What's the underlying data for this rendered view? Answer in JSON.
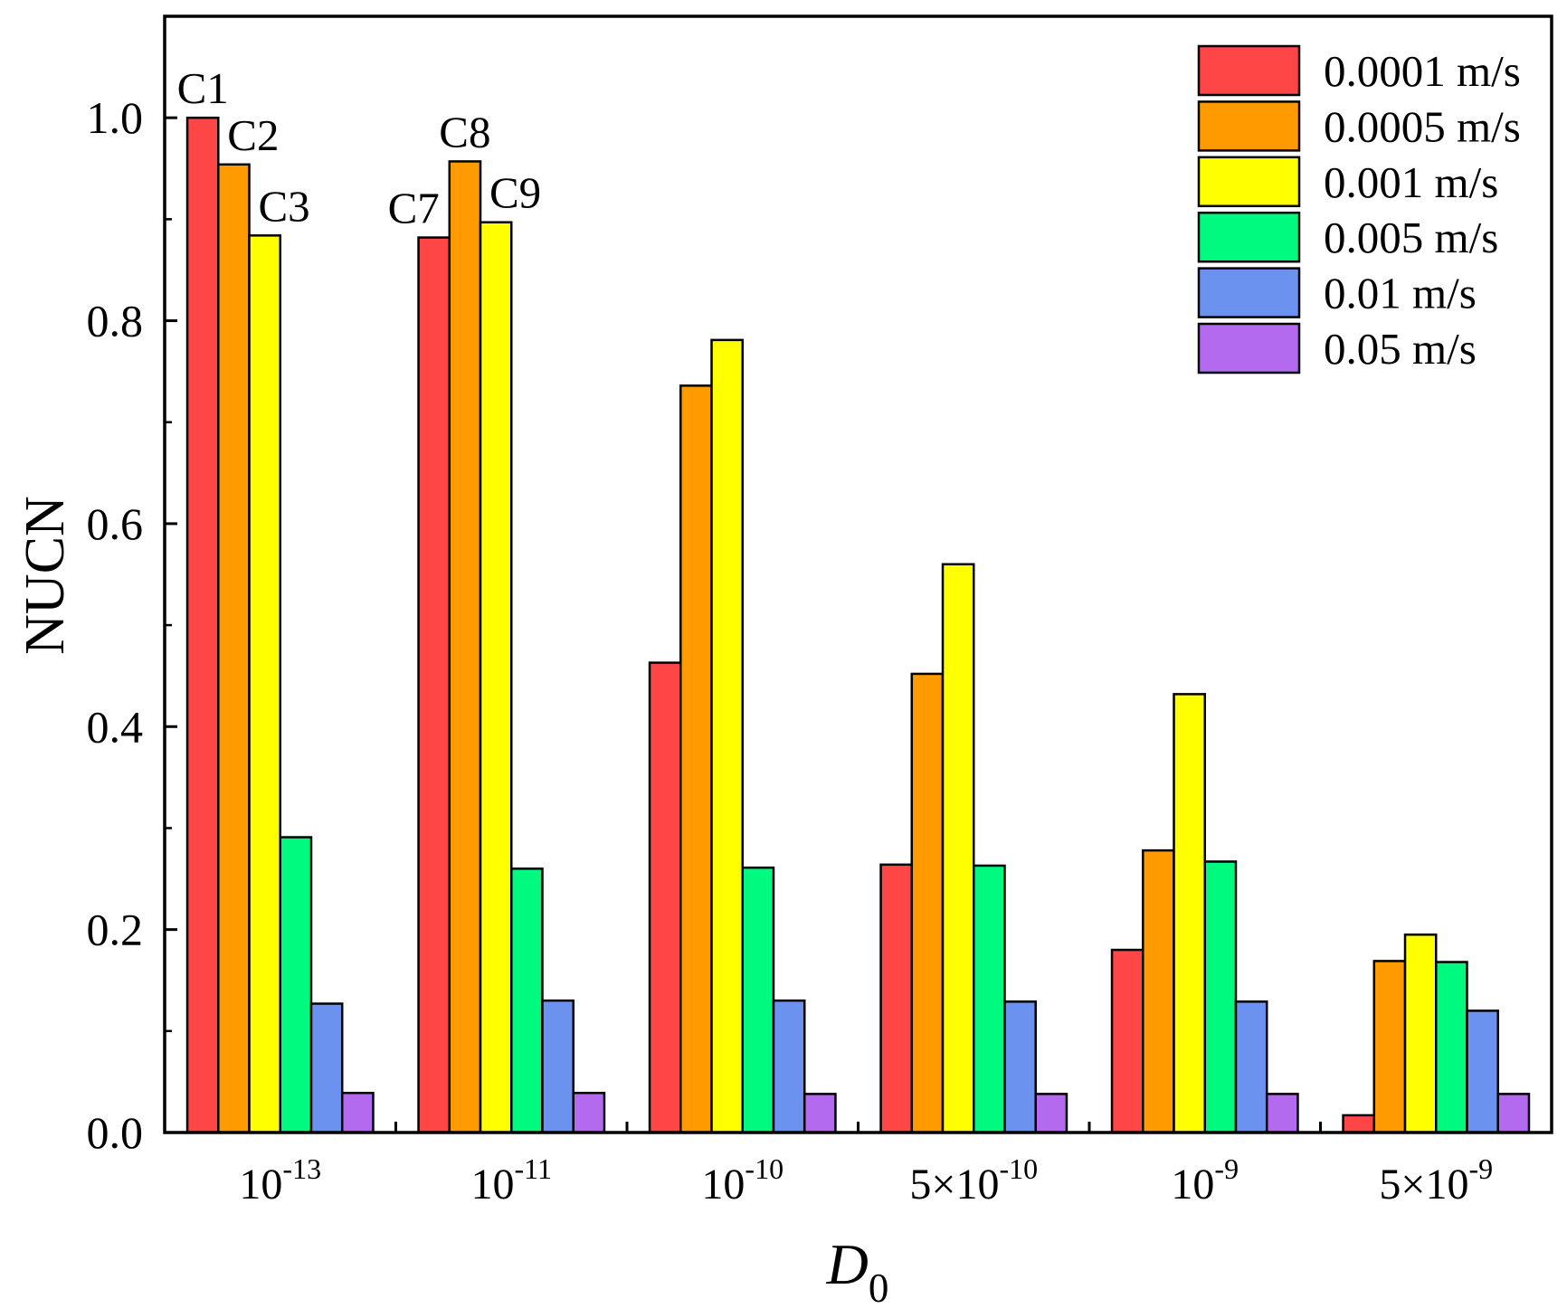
{
  "chart_data": {
    "type": "bar",
    "title": "",
    "xlabel": {
      "main": "D",
      "sub": "0"
    },
    "ylabel": "NUCN",
    "ylim": [
      0,
      1.1
    ],
    "yticks": [
      "0.0",
      "0.2",
      "0.4",
      "0.6",
      "0.8",
      "1.0"
    ],
    "grid": false,
    "legend_position": "top-right",
    "categories": [
      {
        "base": "10",
        "exp": "-13"
      },
      {
        "base": "10",
        "exp": "-11"
      },
      {
        "base": "10",
        "exp": "-10"
      },
      {
        "base": "5×10",
        "exp": "-10"
      },
      {
        "base": "10",
        "exp": "-9"
      },
      {
        "base": "5×10",
        "exp": "-9"
      }
    ],
    "series": [
      {
        "name": "0.0001 m/s",
        "color": "#FF4646",
        "values": [
          1.0,
          0.882,
          0.463,
          0.264,
          0.18,
          0.017
        ]
      },
      {
        "name": "0.0005 m/s",
        "color": "#FF9A00",
        "values": [
          0.954,
          0.957,
          0.736,
          0.452,
          0.278,
          0.169
        ]
      },
      {
        "name": "0.001 m/s",
        "color": "#FFFF00",
        "values": [
          0.884,
          0.897,
          0.781,
          0.56,
          0.432,
          0.195
        ]
      },
      {
        "name": "0.005 m/s",
        "color": "#00FA80",
        "values": [
          0.291,
          0.26,
          0.261,
          0.263,
          0.267,
          0.168
        ]
      },
      {
        "name": "0.01 m/s",
        "color": "#6A92EE",
        "values": [
          0.127,
          0.13,
          0.13,
          0.129,
          0.129,
          0.12
        ]
      },
      {
        "name": "0.05 m/s",
        "color": "#B46AEE",
        "values": [
          0.039,
          0.039,
          0.038,
          0.038,
          0.038,
          0.038
        ]
      }
    ],
    "annotations": [
      {
        "text": "C1",
        "series": 0,
        "category": 0,
        "placement": "above"
      },
      {
        "text": "C2",
        "series": 1,
        "category": 0,
        "placement": "above-right"
      },
      {
        "text": "C3",
        "series": 2,
        "category": 0,
        "placement": "above-right"
      },
      {
        "text": "C7",
        "series": 0,
        "category": 1,
        "placement": "above-left"
      },
      {
        "text": "C8",
        "series": 1,
        "category": 1,
        "placement": "above"
      },
      {
        "text": "C9",
        "series": 2,
        "category": 1,
        "placement": "above-right"
      }
    ]
  }
}
